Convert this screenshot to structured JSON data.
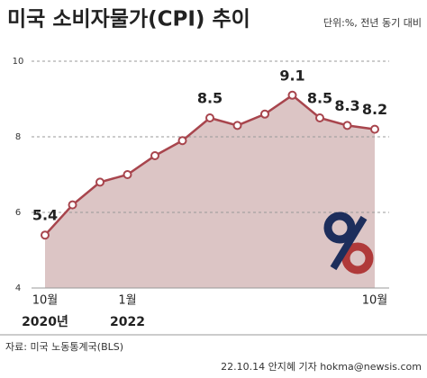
{
  "chart_data": {
    "type": "line",
    "title": "미국 소비자물가(CPI) 추이",
    "subtitle": "단위:%, 전년 동기 대비",
    "categories": [
      "10월",
      null,
      null,
      "1월",
      null,
      null,
      null,
      null,
      null,
      null,
      null,
      null,
      "10월"
    ],
    "category_years": [
      "2020년",
      null,
      null,
      "2022",
      null,
      null,
      null,
      null,
      null,
      null,
      null,
      null,
      null
    ],
    "series": [
      {
        "name": "CPI",
        "color": "#a8454d",
        "area_color": "#dcc5c5",
        "values": [
          5.4,
          6.2,
          6.8,
          7.0,
          7.5,
          7.9,
          8.5,
          8.3,
          8.6,
          9.1,
          8.5,
          8.3,
          8.2
        ],
        "value_labels": [
          "5.4",
          null,
          null,
          null,
          null,
          null,
          "8.5",
          null,
          null,
          "9.1",
          "8.5",
          "8.3",
          "8.2"
        ]
      }
    ],
    "ylim": [
      4,
      10
    ],
    "yticks": [
      4,
      6,
      8,
      10
    ],
    "grid": true,
    "source": "자료: 미국 노동통계국(BLS)",
    "credit": "22.10.14 안지혜 기자 hokma@newsis.com"
  }
}
